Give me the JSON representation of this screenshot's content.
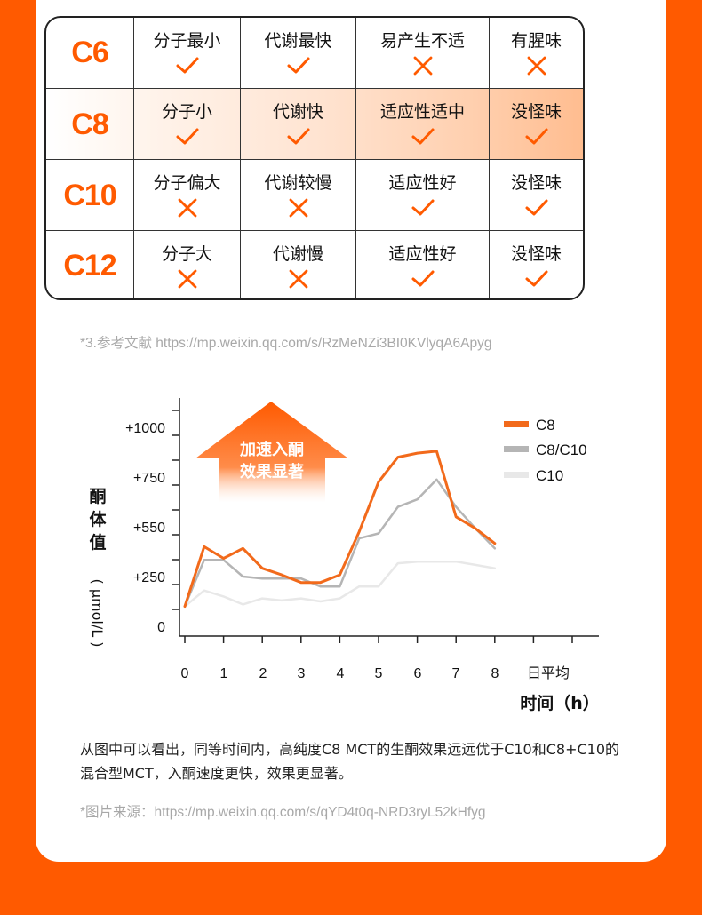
{
  "table": {
    "rows": [
      {
        "label": "C6",
        "cells": [
          {
            "text": "分子最小",
            "mark": "check"
          },
          {
            "text": "代谢最快",
            "mark": "check"
          },
          {
            "text": "易产生不适",
            "mark": "cross"
          },
          {
            "text": "有腥味",
            "mark": "cross"
          }
        ]
      },
      {
        "label": "C8",
        "cells": [
          {
            "text": "分子小",
            "mark": "check"
          },
          {
            "text": "代谢快",
            "mark": "check"
          },
          {
            "text": "适应性适中",
            "mark": "check"
          },
          {
            "text": "没怪味",
            "mark": "check"
          }
        ]
      },
      {
        "label": "C10",
        "cells": [
          {
            "text": "分子偏大",
            "mark": "cross"
          },
          {
            "text": "代谢较慢",
            "mark": "cross"
          },
          {
            "text": "适应性好",
            "mark": "check"
          },
          {
            "text": "没怪味",
            "mark": "check"
          }
        ]
      },
      {
        "label": "C12",
        "cells": [
          {
            "text": "分子大",
            "mark": "cross"
          },
          {
            "text": "代谢慢",
            "mark": "cross"
          },
          {
            "text": "适应性好",
            "mark": "check"
          },
          {
            "text": "没怪味",
            "mark": "check"
          }
        ]
      }
    ]
  },
  "ref_note": "*3.参考文献 https://mp.weixin.qq.com/s/RzMeNZi3BI0KVlyqA6Apyg",
  "chart_data": {
    "type": "line",
    "ylabel": "酮体值",
    "ylabel_unit": "( μmol/L )",
    "xlabel": "时间（h）",
    "x_ticks": [
      "0",
      "1",
      "2",
      "3",
      "4",
      "5",
      "6",
      "7",
      "8",
      "日平均"
    ],
    "y_ticks": [
      "0",
      "+250",
      "+550",
      "+750",
      "+1000"
    ],
    "annotation": "加速入酮\n效果显著",
    "x": [
      0,
      0.5,
      1,
      1.5,
      2,
      2.5,
      3,
      3.5,
      4,
      4.5,
      5,
      5.5,
      6,
      6.5,
      7,
      7.5,
      8
    ],
    "series": [
      {
        "name": "C8",
        "color": "#f26a1b",
        "values": [
          100,
          430,
          360,
          420,
          300,
          260,
          220,
          220,
          260,
          520,
          730,
          850,
          870,
          880,
          590,
          540,
          450
        ]
      },
      {
        "name": "C8/C10",
        "color": "#b5b5b5",
        "values": [
          100,
          350,
          350,
          250,
          240,
          240,
          240,
          200,
          200,
          480,
          510,
          630,
          660,
          740,
          630,
          540,
          420
        ]
      },
      {
        "name": "C10",
        "color": "#e8e8e8",
        "values": [
          100,
          180,
          150,
          110,
          140,
          130,
          140,
          125,
          140,
          200,
          200,
          330,
          340,
          340,
          340,
          320,
          300
        ]
      }
    ]
  },
  "description": "从图中可以看出，同等时间内，高纯度C8 MCT的生酮效果远远优于C10和C8+C10的混合型MCT，入酮速度更快，效果更显著。",
  "source_note": "*图片来源：https://mp.weixin.qq.com/s/qYD4t0q-NRD3ryL52kHfyg"
}
